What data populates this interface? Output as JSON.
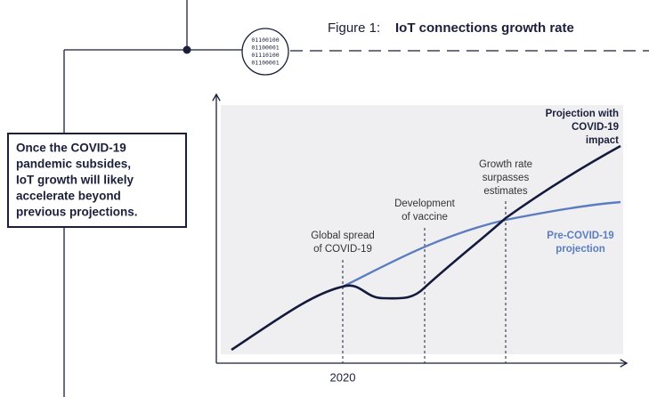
{
  "figure": {
    "prefix": "Figure 1:",
    "title": "IoT connections growth rate"
  },
  "badge": {
    "lines": [
      "01100100",
      "01100001",
      "01110100",
      "01100001"
    ]
  },
  "callout": {
    "lines": [
      "Once the COVID-19",
      "pandemic subsides,",
      "IoT growth will likely",
      "accelerate beyond",
      "previous projections."
    ]
  },
  "chart": {
    "x_label": "2020",
    "annotations": {
      "spread": [
        "Global spread",
        "of COVID-19"
      ],
      "vaccine": [
        "Development",
        "of vaccine"
      ],
      "surpass": [
        "Growth rate",
        "surpasses",
        "estimates"
      ]
    },
    "legend": {
      "covid": [
        "Projection with",
        "COVID-19",
        "impact"
      ],
      "pre": [
        "Pre-COVID-19",
        "projection"
      ]
    }
  }
}
